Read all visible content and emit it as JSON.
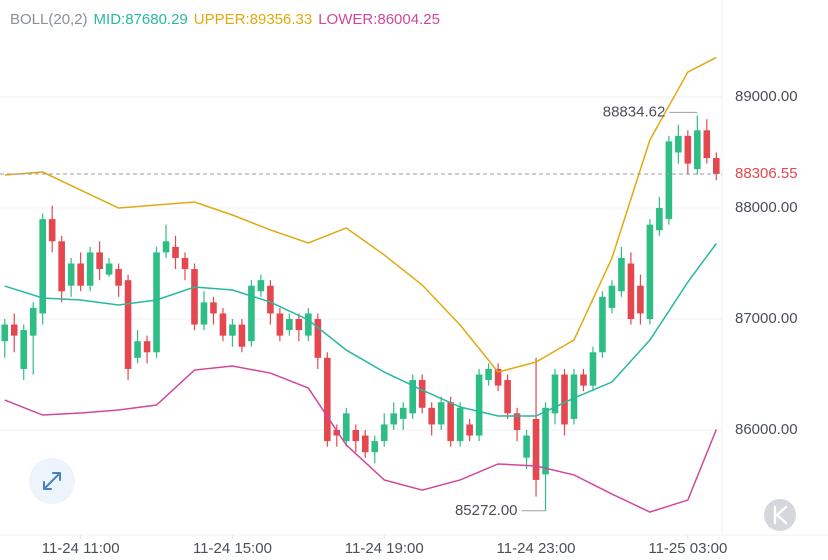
{
  "chart_data": {
    "type": "candlestick",
    "legend": [
      "BOLL(20,2)",
      "MID:87680.29",
      "UPPER:89356.33",
      "LOWER:86004.25"
    ],
    "legend_colors": [
      "#8a8f99",
      "#27b9a0",
      "#e0a910",
      "#d1479b"
    ],
    "up_color": "#2ebd85",
    "down_color": "#e5474f",
    "xlim": [
      -0.5,
      75.6
    ],
    "ylim": [
      85054,
      89874
    ],
    "grid": true,
    "yticks": [
      {
        "value": 89000,
        "label": "89000.00"
      },
      {
        "value": 88000,
        "label": "88000.00"
      },
      {
        "value": 87000,
        "label": "87000.00"
      },
      {
        "value": 86000,
        "label": "86000.00"
      }
    ],
    "xticks": [
      {
        "value": 8,
        "label": "11-24 11:00"
      },
      {
        "value": 24,
        "label": "11-24 15:00"
      },
      {
        "value": 40,
        "label": "11-24 19:00"
      },
      {
        "value": 56,
        "label": "11-24 23:00"
      },
      {
        "value": 72,
        "label": "11-25 03:00"
      }
    ],
    "candles": {
      "open": [
        86800,
        86950,
        86550,
        86850,
        87050,
        87900,
        87700,
        87300,
        87500,
        87300,
        87600,
        87400,
        87450,
        87350,
        86650,
        86800,
        86700,
        87600,
        87650,
        87550,
        87450,
        86950,
        87150,
        87050,
        86850,
        86950,
        86800,
        87250,
        87300,
        87050,
        86900,
        87000,
        86850,
        87000,
        86650,
        86000,
        85900,
        86000,
        85950,
        85800,
        85900,
        86050,
        86100,
        86150,
        86450,
        86200,
        86050,
        86250,
        85900,
        86050,
        85950,
        86450,
        86550,
        86450,
        86150,
        85750,
        86100,
        85600,
        86150,
        86500,
        86100,
        86500,
        86400,
        86700,
        87100,
        87250,
        87500,
        87300,
        87000,
        87800,
        87900,
        88500,
        88650,
        88350,
        88700,
        88450
      ],
      "high": [
        87000,
        87050,
        86950,
        87150,
        87950,
        88020,
        87750,
        87550,
        87600,
        87650,
        87700,
        87550,
        87500,
        87400,
        86900,
        86850,
        87650,
        87850,
        87750,
        87600,
        87500,
        87250,
        87200,
        87100,
        87000,
        87000,
        87350,
        87400,
        87350,
        87100,
        87050,
        87050,
        87100,
        87050,
        86700,
        86050,
        86200,
        86050,
        86000,
        85950,
        86150,
        86250,
        86250,
        86500,
        86500,
        86250,
        86300,
        86300,
        86250,
        86100,
        86550,
        86600,
        86600,
        86500,
        86200,
        86000,
        86650,
        86250,
        86550,
        86550,
        86550,
        86550,
        86750,
        87250,
        87350,
        87650,
        87600,
        87400,
        87900,
        88100,
        88650,
        88750,
        88700,
        88834.62,
        88800,
        88500
      ],
      "low": [
        86650,
        86700,
        86450,
        86500,
        86950,
        87600,
        87150,
        87200,
        87250,
        87250,
        87350,
        87380,
        87200,
        86450,
        86600,
        86600,
        86650,
        87550,
        87450,
        87350,
        86900,
        86900,
        86950,
        86800,
        86750,
        86700,
        86750,
        87200,
        86950,
        86800,
        86850,
        86800,
        86800,
        86550,
        85850,
        85850,
        85850,
        85800,
        85750,
        85700,
        85850,
        86000,
        86000,
        86100,
        86150,
        85950,
        86000,
        85850,
        85850,
        85900,
        85900,
        86400,
        86350,
        86100,
        85900,
        85650,
        85400,
        85272,
        86050,
        85950,
        86050,
        86350,
        86350,
        86650,
        87050,
        87200,
        86950,
        86950,
        86950,
        87750,
        87850,
        88400,
        88300,
        88300,
        88400,
        88250
      ],
      "close": [
        86950,
        86850,
        86900,
        87100,
        87900,
        87700,
        87250,
        87500,
        87300,
        87600,
        87450,
        87500,
        87300,
        86550,
        86800,
        86700,
        87600,
        87700,
        87550,
        87450,
        86950,
        87150,
        87050,
        86850,
        86950,
        86750,
        87300,
        87350,
        87050,
        86850,
        87000,
        86900,
        87050,
        86650,
        85900,
        85950,
        86150,
        85900,
        85800,
        85900,
        86050,
        86150,
        86200,
        86450,
        86200,
        86050,
        86250,
        85900,
        86200,
        85950,
        86500,
        86550,
        86400,
        86150,
        86000,
        85950,
        85550,
        86200,
        86500,
        86050,
        86500,
        86400,
        86700,
        87200,
        87300,
        87550,
        87000,
        87050,
        87850,
        88000,
        88600,
        88650,
        88400,
        88700,
        88450,
        88306.55
      ]
    },
    "low_value_label": "85272.00",
    "bands": {
      "x": [
        0,
        4,
        8,
        12,
        16,
        20,
        24,
        28,
        32,
        36,
        40,
        44,
        48,
        52,
        56,
        60,
        64,
        68,
        72,
        75
      ],
      "upper": [
        88297,
        88324,
        88162,
        88000,
        88027,
        88054,
        87937,
        87802,
        87685,
        87820,
        87577,
        87306,
        86946,
        86522,
        86612,
        86811,
        87549,
        88613,
        89225,
        89356.33
      ],
      "mid": [
        87297,
        87189,
        87171,
        87126,
        87171,
        87288,
        87261,
        87153,
        86991,
        86720,
        86522,
        86360,
        86207,
        86126,
        86126,
        86288,
        86432,
        86811,
        87333,
        87680.29
      ],
      "lower": [
        86270,
        86135,
        86153,
        86180,
        86225,
        86540,
        86576,
        86513,
        86378,
        85865,
        85550,
        85459,
        85550,
        85694,
        85676,
        85595,
        85423,
        85261,
        85369,
        86004.25
      ]
    }
  }
}
